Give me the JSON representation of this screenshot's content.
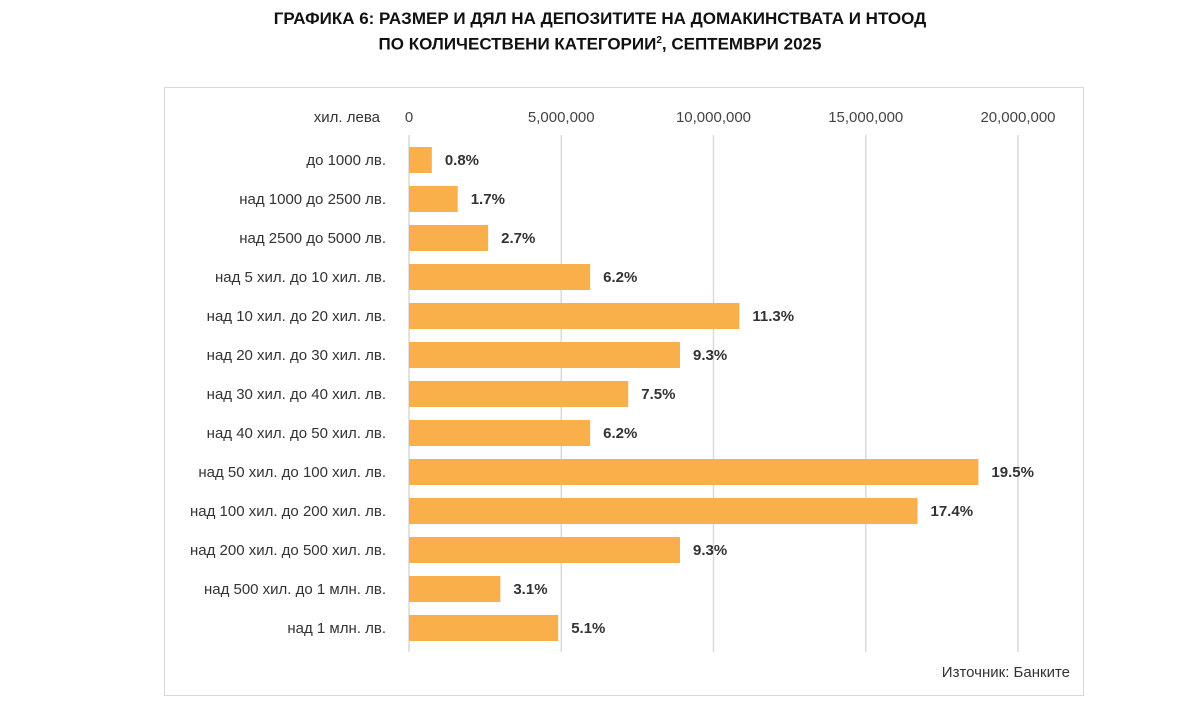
{
  "title": {
    "line1": "ГРАФИКА 6: РАЗМЕР И ДЯЛ НА ДЕПОЗИТИТЕ НА ДОМАКИНСТВАТА И НТООД",
    "line2_main": "ПО КОЛИЧЕСТВЕНИ КАТЕГОРИИ",
    "line2_sup": "2",
    "line2_tail": ", СЕПТЕМВРИ 2025"
  },
  "source": "Източник: Банките",
  "colors": {
    "bar": "#F9B04B",
    "grid": "#d9d9d9",
    "text": "#333333"
  },
  "chart_data": {
    "type": "bar",
    "orientation": "horizontal",
    "unit_label": "хил. лева",
    "xlim": [
      0,
      20000000
    ],
    "xticks": [
      0,
      5000000,
      10000000,
      15000000,
      20000000
    ],
    "xtick_labels": [
      "0",
      "5,000,000",
      "10,000,000",
      "15,000,000",
      "20,000,000"
    ],
    "categories": [
      "до 1000 лв.",
      "над 1000 до 2500 лв.",
      "над 2500 до 5000 лв.",
      "над 5 хил. до 10 хил. лв.",
      "над 10 хил. до 20 хил. лв.",
      "над 20 хил. до 30 хил. лв.",
      "над 30 хил. до 40 хил. лв.",
      "над 40 хил. до 50 хил. лв.",
      "над 50 хил. до 100 хил. лв.",
      "над 100 хил. до 200 хил. лв.",
      "над 200 хил. до 500 хил. лв.",
      "над 500 хил. до 1 млн. лв.",
      "над 1 млн. лв."
    ],
    "values": [
      750000,
      1600000,
      2600000,
      5950000,
      10850000,
      8900000,
      7200000,
      5950000,
      18700000,
      16700000,
      8900000,
      3000000,
      4900000
    ],
    "data_labels": [
      "0.8%",
      "1.7%",
      "2.7%",
      "6.2%",
      "11.3%",
      "9.3%",
      "7.5%",
      "6.2%",
      "19.5%",
      "17.4%",
      "9.3%",
      "3.1%",
      "5.1%"
    ],
    "grid": true
  }
}
